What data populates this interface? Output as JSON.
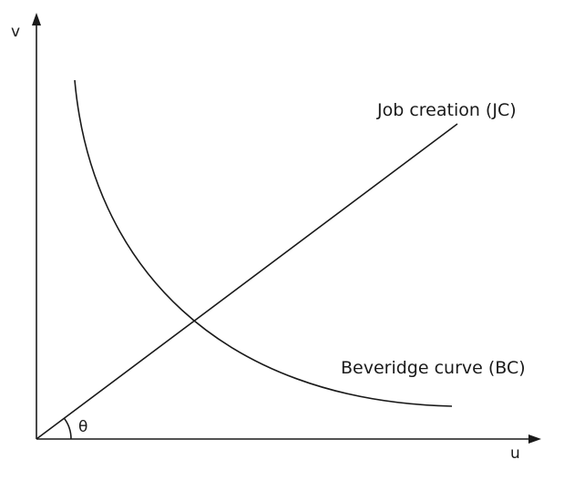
{
  "diagram": {
    "y_axis_label": "v",
    "x_axis_label": "u",
    "angle_label": "θ",
    "job_creation_label": "Job creation (JC)",
    "beveridge_label": "Beveridge curve (BC)"
  }
}
